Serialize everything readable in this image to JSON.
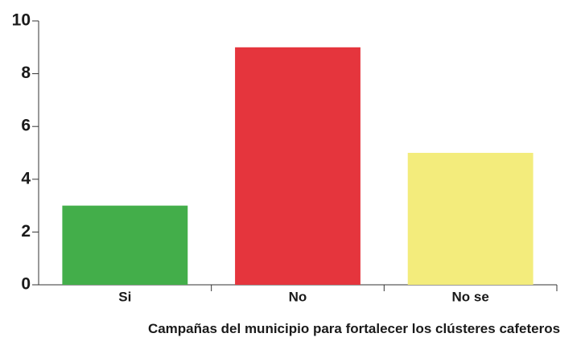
{
  "chart_data": {
    "type": "bar",
    "x_label": "Campañas del municipio para fortalecer los clústeres cafeteros",
    "categories": [
      "Si",
      "No",
      "No se"
    ],
    "values": [
      3,
      9,
      5
    ],
    "colors": [
      "#43ae4a",
      "#e5353d",
      "#f3ec7c"
    ],
    "ylim": [
      0,
      10
    ],
    "yticks": [
      0,
      2,
      4,
      6,
      8,
      10
    ],
    "grid": false
  }
}
